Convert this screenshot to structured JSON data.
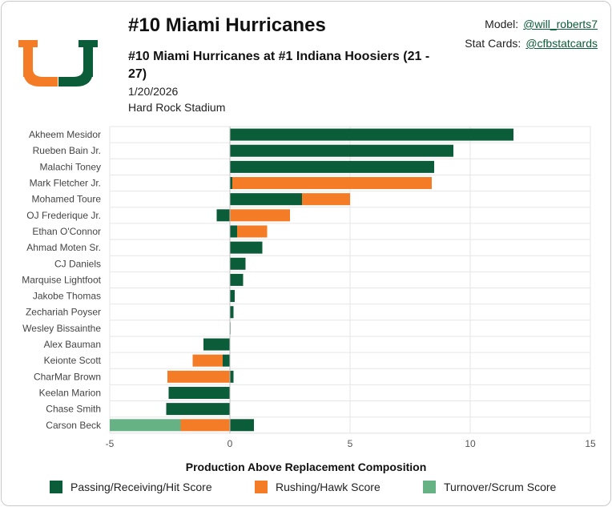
{
  "header": {
    "title": "#10 Miami Hurricanes",
    "subtitle": "#10 Miami Hurricanes at #1 Indiana Hoosiers (21 - 27)",
    "date": "1/20/2026",
    "venue": "Hard Rock Stadium"
  },
  "credits": {
    "model_label": "Model:",
    "model_handle": "@will_roberts7",
    "stat_label": "Stat Cards:",
    "stat_handle": "@cfbstatcards"
  },
  "colors": {
    "passing": "#0b5d3a",
    "rushing": "#f47c26",
    "turnover": "#67b285",
    "logo_orange": "#f47c26",
    "logo_green": "#0b5d3a"
  },
  "chart_data": {
    "type": "bar",
    "orientation": "horizontal",
    "stacked": true,
    "xlabel": "Production Above Replacement Composition",
    "xlim": [
      -5,
      15
    ],
    "xticks": [
      -5,
      0,
      5,
      10,
      15
    ],
    "grid": true,
    "legend_position": "bottom",
    "categories": [
      "Akheem Mesidor",
      "Rueben Bain Jr.",
      "Malachi Toney",
      "Mark Fletcher Jr.",
      "Mohamed Toure",
      "OJ Frederique Jr.",
      "Ethan O'Connor",
      "Ahmad Moten Sr.",
      "CJ Daniels",
      "Marquise Lightfoot",
      "Jakobe Thomas",
      "Zechariah Poyser",
      "Wesley Bissainthe",
      "Alex Bauman",
      "Keionte Scott",
      "CharMar Brown",
      "Keelan Marion",
      "Chase Smith",
      "Carson Beck"
    ],
    "series": [
      {
        "name": "Passing/Receiving/Hit Score",
        "values": [
          11.8,
          9.3,
          8.5,
          0.1,
          3.0,
          -0.55,
          0.3,
          1.35,
          0.65,
          0.55,
          0.2,
          0.15,
          0.02,
          -1.1,
          -0.3,
          0.15,
          -2.55,
          -2.65,
          1.0
        ]
      },
      {
        "name": "Rushing/Hawk Score",
        "values": [
          0,
          0,
          0,
          8.3,
          2.0,
          2.5,
          1.25,
          0,
          0,
          0,
          0,
          0,
          0,
          0,
          -1.25,
          -2.6,
          0,
          0,
          -2.05
        ]
      },
      {
        "name": "Turnover/Scrum Score",
        "values": [
          0,
          0,
          0,
          0,
          0,
          0,
          0,
          0,
          0,
          0,
          0,
          0,
          0,
          0,
          0,
          0,
          0,
          0,
          -2.95
        ]
      }
    ]
  }
}
